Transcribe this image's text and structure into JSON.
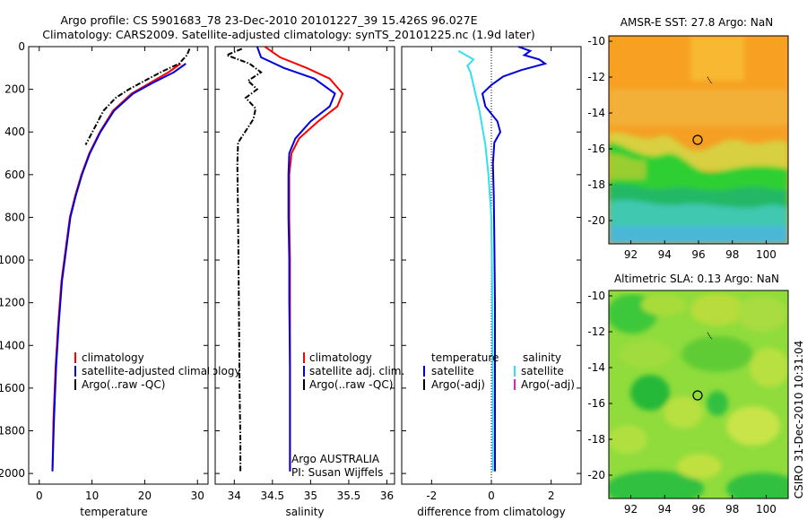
{
  "header": {
    "line1": "Argo profile: CS 5901683_78 23-Dec-2010 20101227_39 15.426S 96.027E",
    "line2": "Climatology: CARS2009. Satellite-adjusted climatology: synTS_20101225.nc (1.9d later)"
  },
  "side_label": "CSIRO 31-Dec-2010 10:31:04",
  "colors": {
    "red": "#ff0000",
    "blue": "#0000dd",
    "black": "#000000",
    "cyan": "#33e0f0",
    "magenta": "#dd22cc"
  },
  "panels": {
    "temperature": {
      "legend": [
        "climatology",
        "satellite-adjusted climatology",
        "Argo(..raw -QC)"
      ]
    },
    "salinity": {
      "legend": [
        "climatology",
        "satellite adj. clim.",
        "Argo(..raw -QC)"
      ],
      "note1": "Argo AUSTRALIA",
      "note2": "PI: Susan Wijffels"
    },
    "difference": {
      "legend_temp_head": "temperature",
      "legend_sal_head": "salinity",
      "legend_temp": [
        "satellite",
        "Argo(-adj)"
      ],
      "legend_sal": [
        "satellite",
        "Argo(-adj)"
      ]
    }
  },
  "chart_data": [
    {
      "type": "line",
      "xlabel": "temperature",
      "xlim": [
        -2,
        32
      ],
      "ylim": [
        2050,
        0
      ],
      "xticks": [
        0,
        10,
        20,
        30
      ],
      "yticks": [
        0,
        200,
        400,
        600,
        800,
        1000,
        1200,
        1400,
        1600,
        1800,
        2000
      ],
      "series": [
        {
          "name": "climatology",
          "color": "red",
          "x": [
            26.8,
            24.5,
            21.0,
            17.5,
            14.0,
            11.5,
            9.5,
            8.0,
            6.8,
            5.8,
            5.0,
            4.2,
            3.6,
            3.1,
            2.7,
            2.5
          ],
          "y": [
            80,
            120,
            170,
            220,
            300,
            400,
            500,
            600,
            700,
            800,
            950,
            1100,
            1300,
            1500,
            1750,
            1990
          ]
        },
        {
          "name": "satellite-adjusted climatology",
          "color": "blue",
          "x": [
            27.8,
            25.5,
            21.5,
            17.8,
            14.2,
            11.6,
            9.6,
            8.1,
            6.9,
            5.9,
            5.1,
            4.3,
            3.7,
            3.2,
            2.8,
            2.5
          ],
          "y": [
            80,
            120,
            170,
            220,
            300,
            400,
            500,
            600,
            700,
            800,
            950,
            1100,
            1300,
            1500,
            1750,
            1990
          ]
        },
        {
          "name": "Argo(..raw -QC)",
          "color": "black",
          "dash": true,
          "x": [
            28.5,
            28.0,
            26.5,
            23.0,
            20.0,
            17.0,
            14.5,
            12.2,
            10.5,
            8.8
          ],
          "y": [
            10,
            40,
            80,
            120,
            160,
            200,
            240,
            300,
            380,
            460
          ]
        }
      ]
    },
    {
      "type": "line",
      "xlabel": "salinity",
      "xlim": [
        33.75,
        36.1
      ],
      "ylim": [
        2050,
        0
      ],
      "xticks": [
        34,
        34.5,
        35,
        35.5,
        36
      ],
      "series": [
        {
          "name": "climatology",
          "color": "red",
          "x": [
            34.4,
            34.6,
            34.95,
            35.25,
            35.42,
            35.35,
            35.1,
            34.85,
            34.75,
            34.72,
            34.72,
            34.73,
            34.73,
            34.73,
            34.73,
            34.73
          ],
          "y": [
            0,
            50,
            100,
            150,
            220,
            280,
            350,
            430,
            500,
            600,
            800,
            1000,
            1200,
            1500,
            1800,
            1990
          ]
        },
        {
          "name": "satellite adj. clim.",
          "color": "blue",
          "x": [
            34.3,
            34.35,
            34.65,
            35.05,
            35.32,
            35.25,
            35.0,
            34.8,
            34.72,
            34.71,
            34.71,
            34.72,
            34.72,
            34.73,
            34.73,
            34.73
          ],
          "y": [
            0,
            50,
            100,
            150,
            220,
            280,
            350,
            430,
            500,
            600,
            800,
            1000,
            1200,
            1500,
            1800,
            1990
          ]
        },
        {
          "name": "Argo(..raw -QC)",
          "color": "black",
          "dash": true,
          "x": [
            34.1,
            33.9,
            34.2,
            34.35,
            34.18,
            34.3,
            34.15,
            34.28,
            34.25,
            34.05,
            34.04,
            34.05,
            34.06,
            34.07,
            34.08,
            34.08
          ],
          "y": [
            10,
            40,
            80,
            120,
            160,
            200,
            240,
            290,
            340,
            450,
            550,
            800,
            1200,
            1600,
            1850,
            1990
          ]
        }
      ]
    },
    {
      "type": "line",
      "xlabel": "difference from climatology",
      "xlim": [
        -3,
        3
      ],
      "ylim": [
        2050,
        0
      ],
      "xticks": [
        -2,
        0,
        2
      ],
      "series": [
        {
          "name": "satellite",
          "color": "blue",
          "x": [
            0.9,
            1.3,
            1.1,
            1.6,
            1.8,
            1.0,
            0.4,
            0.0,
            -0.3,
            -0.2,
            0.2,
            0.3,
            0.1,
            0.05,
            0.08,
            0.1,
            0.12,
            0.12,
            0.12
          ],
          "y": [
            0,
            20,
            40,
            60,
            80,
            110,
            140,
            180,
            220,
            280,
            350,
            400,
            450,
            550,
            700,
            900,
            1200,
            1600,
            1990
          ]
        },
        {
          "name": "satellite",
          "color": "cyan",
          "x": [
            -1.1,
            -0.6,
            -0.8,
            -0.7,
            -0.6,
            -0.5,
            -0.4,
            -0.3,
            -0.2,
            -0.1,
            0.0,
            0.03,
            0.05,
            0.05
          ],
          "y": [
            20,
            60,
            90,
            120,
            180,
            240,
            300,
            380,
            460,
            600,
            800,
            1200,
            1600,
            1990
          ]
        }
      ]
    },
    {
      "type": "heatmap",
      "title": "AMSR-E SST: 27.8 Argo: NaN",
      "xlim": [
        90.7,
        101.3
      ],
      "ylim": [
        -21.3,
        -9.7
      ],
      "xticks": [
        92,
        94,
        96,
        98,
        100
      ],
      "yticks": [
        -10,
        -12,
        -14,
        -16,
        -18,
        -20
      ],
      "marker": [
        96.0,
        -15.4
      ]
    },
    {
      "type": "heatmap",
      "title": "Altimetric SLA: 0.13 Argo: NaN",
      "xlim": [
        90.7,
        101.3
      ],
      "ylim": [
        -21.3,
        -9.7
      ],
      "xticks": [
        92,
        94,
        96,
        98,
        100
      ],
      "yticks": [
        -10,
        -12,
        -14,
        -16,
        -18,
        -20
      ],
      "marker": [
        96.0,
        -15.4
      ]
    }
  ]
}
